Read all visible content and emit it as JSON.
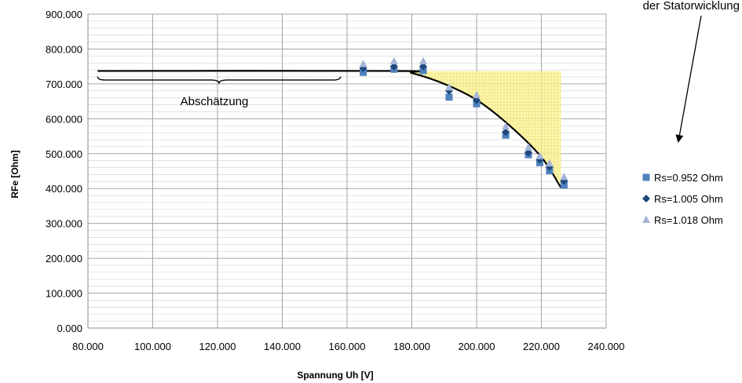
{
  "chart_data": {
    "type": "scatter",
    "title": "",
    "xlabel": "Spannung Uh [V]",
    "ylabel": "RFe [Ohm]",
    "xlim": [
      80,
      240
    ],
    "ylim": [
      0,
      900
    ],
    "x_ticks": [
      "80.000",
      "100.000",
      "120.000",
      "140.000",
      "160.000",
      "180.000",
      "200.000",
      "220.000",
      "240.000"
    ],
    "y_ticks": [
      "0.000",
      "100.000",
      "200.000",
      "300.000",
      "400.000",
      "500.000",
      "600.000",
      "700.000",
      "800.000",
      "900.000"
    ],
    "grid": true,
    "legend_position": "right",
    "series": [
      {
        "name": "Rs=0.952 Ohm",
        "marker": "square",
        "color": "#4f81bd",
        "points": [
          [
            165,
            733
          ],
          [
            174.5,
            742
          ],
          [
            183.5,
            738
          ],
          [
            191.5,
            662
          ],
          [
            200,
            643
          ],
          [
            209,
            553
          ],
          [
            216,
            497
          ],
          [
            219.5,
            474
          ],
          [
            222.5,
            451
          ],
          [
            227,
            410
          ]
        ]
      },
      {
        "name": "Rs=1.005 Ohm",
        "marker": "diamond",
        "color": "#1f497d",
        "points": [
          [
            165,
            745
          ],
          [
            174.5,
            750
          ],
          [
            183.5,
            750
          ],
          [
            191.5,
            680
          ],
          [
            200,
            653
          ],
          [
            209,
            562
          ],
          [
            216,
            503
          ],
          [
            219.5,
            483
          ],
          [
            222.5,
            462
          ],
          [
            227,
            422
          ]
        ]
      },
      {
        "name": "Rs=1.018 Ohm",
        "marker": "triangle",
        "color": "#a5b5d8",
        "points": [
          [
            165,
            757
          ],
          [
            174.5,
            765
          ],
          [
            183.5,
            765
          ],
          [
            191.5,
            690
          ],
          [
            200,
            668
          ],
          [
            209,
            578
          ],
          [
            216,
            518
          ],
          [
            219.5,
            493
          ],
          [
            222.5,
            472
          ],
          [
            227,
            433
          ]
        ]
      }
    ],
    "fit_curve": [
      [
        83,
        737
      ],
      [
        175,
        737
      ],
      [
        180,
        731
      ],
      [
        190,
        700
      ],
      [
        200,
        654
      ],
      [
        210,
        582
      ],
      [
        220,
        490
      ],
      [
        226,
        403
      ]
    ],
    "annotations": {
      "brace_label": "Abschätzung",
      "top_note": "der Statorwicklung"
    }
  }
}
